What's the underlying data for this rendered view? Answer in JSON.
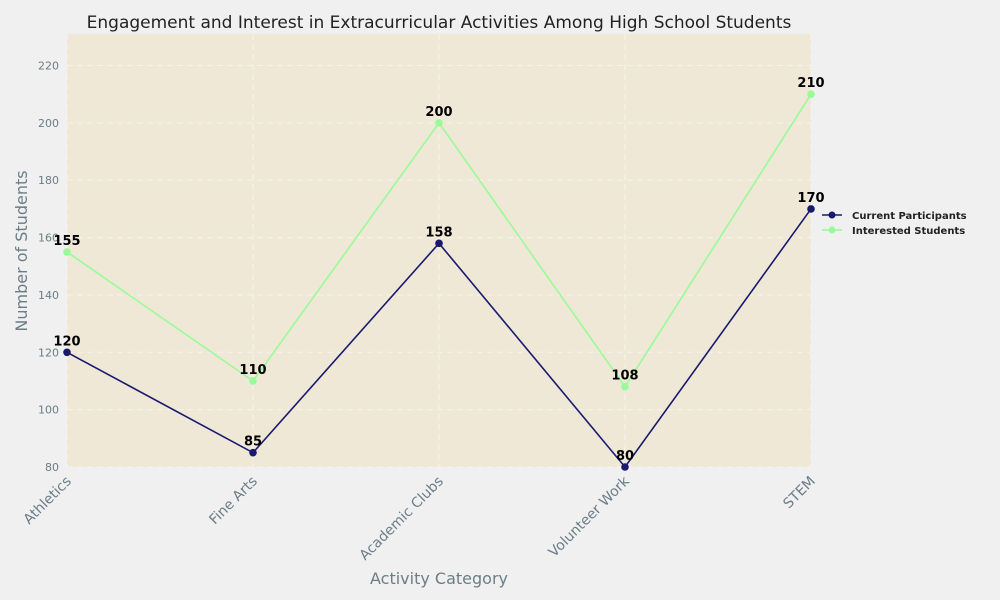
{
  "colors": {
    "background": "#f0f0f0",
    "plot_background": "#efe8d7",
    "grid": "#f7f3ea",
    "tick_text": "#6b7d87"
  },
  "chart_data": {
    "type": "line",
    "title": "Engagement and Interest in Extracurricular Activities Among High School Students",
    "xlabel": "Activity Category",
    "ylabel": "Number of Students",
    "categories": [
      "Athletics",
      "Fine Arts",
      "Academic Clubs",
      "Volunteer Work",
      "STEM"
    ],
    "ylim": [
      80,
      231
    ],
    "yticks": [
      80,
      100,
      120,
      140,
      160,
      180,
      200,
      220
    ],
    "grid": true,
    "legend_position": "right",
    "series": [
      {
        "name": "Current Participants",
        "values": [
          120,
          85,
          158,
          80,
          170
        ],
        "color": "#191970"
      },
      {
        "name": "Interested Students",
        "values": [
          155,
          110,
          200,
          108,
          210
        ],
        "color": "#98fb98"
      }
    ]
  }
}
